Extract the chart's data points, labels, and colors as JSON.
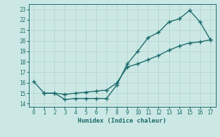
{
  "xlabel": "Humidex (Indice chaleur)",
  "ylabel": "",
  "background_color": "#cce8e5",
  "grid_color": "#b8d8d5",
  "line_color": "#1a6b6b",
  "xlim": [
    -0.5,
    17.5
  ],
  "ylim": [
    13.7,
    23.5
  ],
  "xticks": [
    0,
    1,
    2,
    3,
    4,
    5,
    6,
    7,
    8,
    9,
    10,
    11,
    12,
    13,
    14,
    15,
    16,
    17
  ],
  "yticks": [
    14,
    15,
    16,
    17,
    18,
    19,
    20,
    21,
    22,
    23
  ],
  "series1_x": [
    0,
    1,
    2,
    3,
    4,
    5,
    6,
    7,
    8,
    9,
    10,
    11,
    12,
    13,
    14,
    15,
    16,
    17
  ],
  "series1_y": [
    16.1,
    15.0,
    15.0,
    14.4,
    14.5,
    14.5,
    14.5,
    14.5,
    15.8,
    17.8,
    19.0,
    20.3,
    20.8,
    21.8,
    22.1,
    22.9,
    21.8,
    20.1
  ],
  "series2_x": [
    1,
    2,
    3,
    4,
    5,
    6,
    7,
    8,
    9,
    10,
    11,
    12,
    13,
    14,
    15,
    16,
    17
  ],
  "series2_y": [
    15.0,
    15.0,
    14.9,
    15.0,
    15.1,
    15.2,
    15.3,
    16.0,
    17.5,
    17.8,
    18.2,
    18.6,
    19.1,
    19.5,
    19.8,
    19.9,
    20.1
  ],
  "marker_size": 2.5,
  "line_width": 1.0
}
